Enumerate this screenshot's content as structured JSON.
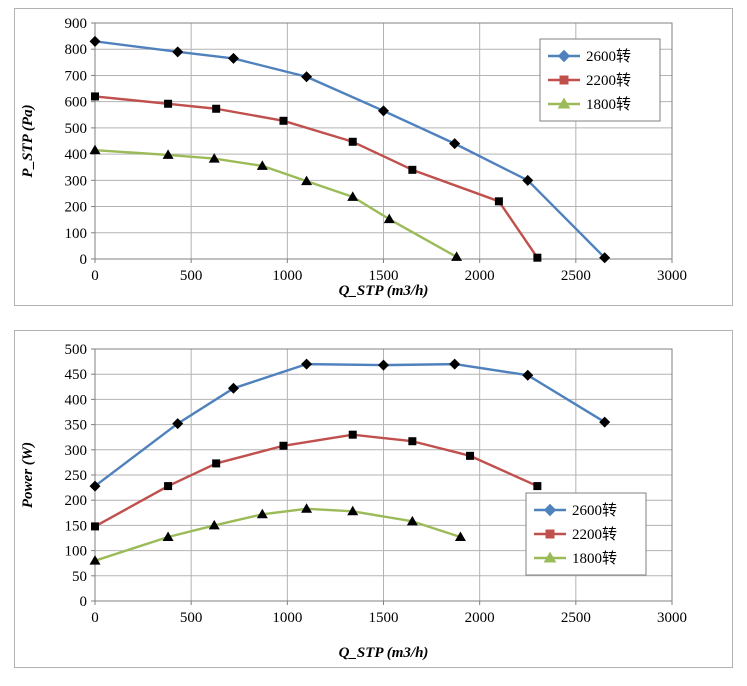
{
  "chart_data": [
    {
      "type": "line",
      "title": "",
      "xlabel": "Q_STP (m3/h)",
      "ylabel": "P_STP (Pa)",
      "xlim": [
        0,
        3000
      ],
      "ylim": [
        0,
        900
      ],
      "xticks": [
        0,
        500,
        1000,
        1500,
        2000,
        2500,
        3000
      ],
      "yticks": [
        0,
        100,
        200,
        300,
        400,
        500,
        600,
        700,
        800,
        900
      ],
      "grid": true,
      "grid_color": "#b3b3b3",
      "axis_color": "#808080",
      "legend_position": "top-right",
      "series": [
        {
          "name": "2600转",
          "color": "#4f81bd",
          "marker": "diamond",
          "points": [
            [
              0,
              830
            ],
            [
              430,
              790
            ],
            [
              720,
              765
            ],
            [
              1100,
              695
            ],
            [
              1500,
              565
            ],
            [
              1870,
              440
            ],
            [
              2250,
              300
            ],
            [
              2650,
              5
            ]
          ]
        },
        {
          "name": "2200转",
          "color": "#c0504d",
          "marker": "square",
          "points": [
            [
              0,
              620
            ],
            [
              380,
              592
            ],
            [
              630,
              573
            ],
            [
              980,
              527
            ],
            [
              1340,
              447
            ],
            [
              1650,
              340
            ],
            [
              2100,
              220
            ],
            [
              2300,
              5
            ]
          ]
        },
        {
          "name": "1800转",
          "color": "#9bbb59",
          "marker": "triangle",
          "points": [
            [
              0,
              415
            ],
            [
              380,
              397
            ],
            [
              620,
              383
            ],
            [
              870,
              355
            ],
            [
              1100,
              297
            ],
            [
              1340,
              237
            ],
            [
              1530,
              152
            ],
            [
              1880,
              8
            ]
          ]
        }
      ]
    },
    {
      "type": "line",
      "title": "",
      "xlabel": "Q_STP (m3/h)",
      "ylabel": "Power (W)",
      "xlim": [
        0,
        3000
      ],
      "ylim": [
        0,
        500
      ],
      "xticks": [
        0,
        500,
        1000,
        1500,
        2000,
        2500,
        3000
      ],
      "yticks": [
        0,
        50,
        100,
        150,
        200,
        250,
        300,
        350,
        400,
        450,
        500
      ],
      "grid": true,
      "grid_color": "#b3b3b3",
      "axis_color": "#808080",
      "legend_position": "bottom-right",
      "series": [
        {
          "name": "2600转",
          "color": "#4f81bd",
          "marker": "diamond",
          "points": [
            [
              0,
              228
            ],
            [
              430,
              352
            ],
            [
              720,
              422
            ],
            [
              1100,
              470
            ],
            [
              1500,
              468
            ],
            [
              1870,
              470
            ],
            [
              2250,
              448
            ],
            [
              2650,
              355
            ]
          ]
        },
        {
          "name": "2200转",
          "color": "#c0504d",
          "marker": "square",
          "points": [
            [
              0,
              148
            ],
            [
              380,
              228
            ],
            [
              630,
              273
            ],
            [
              980,
              308
            ],
            [
              1340,
              330
            ],
            [
              1650,
              317
            ],
            [
              1950,
              288
            ],
            [
              2300,
              228
            ]
          ]
        },
        {
          "name": "1800转",
          "color": "#9bbb59",
          "marker": "triangle",
          "points": [
            [
              0,
              80
            ],
            [
              380,
              127
            ],
            [
              620,
              150
            ],
            [
              870,
              172
            ],
            [
              1100,
              183
            ],
            [
              1340,
              178
            ],
            [
              1650,
              158
            ],
            [
              1900,
              127
            ]
          ]
        }
      ]
    }
  ]
}
